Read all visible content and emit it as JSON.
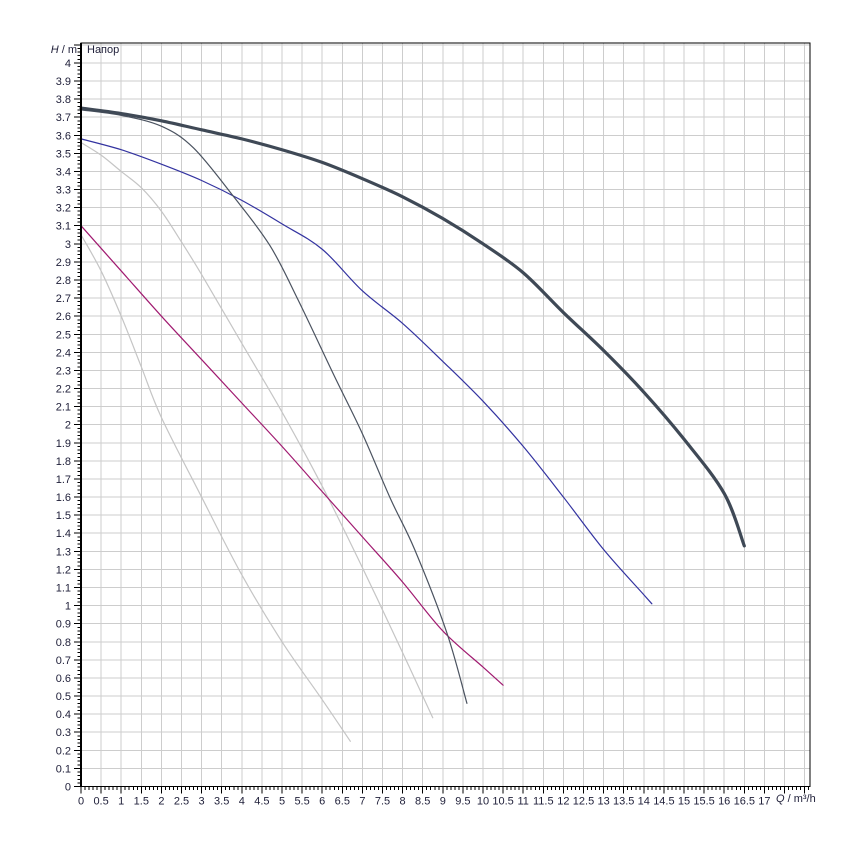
{
  "chart": {
    "title": "Напор",
    "y_axis": {
      "symbol": "H",
      "unit_suffix": " / m"
    },
    "x_axis": {
      "symbol": "Q",
      "unit_suffix": " / m³/h"
    }
  },
  "colors": {
    "grid": "#cdcdcd",
    "border": "#000000",
    "tick": "#000000",
    "label_text": "#1e1e38",
    "curve_main": "#3f4956",
    "curve_dark_thin": "#4b5360",
    "curve_blue": "#3333a0",
    "curve_magenta": "#a01a70",
    "curve_gray": "#c5c5c5"
  },
  "chart_data": {
    "type": "line",
    "title": "Напор",
    "xlabel": "Q / m³/h",
    "ylabel": "H / m",
    "xlim": [
      0,
      18.13
    ],
    "ylim": [
      0,
      4.11
    ],
    "grid": true,
    "x_major_step": 0.5,
    "x_minor_step": 0.1,
    "y_major_step": 0.1,
    "y_minor_step": 0.02,
    "x_tick_labels": [
      "0",
      "0.5",
      "1",
      "1.5",
      "2",
      "2.5",
      "3",
      "3.5",
      "4",
      "4.5",
      "5",
      "5.5",
      "6",
      "6.5",
      "7",
      "7.5",
      "8",
      "8.5",
      "9",
      "9.5",
      "10",
      "10.5",
      "11",
      "11.5",
      "12",
      "12.5",
      "13",
      "13.5",
      "14",
      "14.5",
      "15",
      "15.5",
      "16",
      "16.5",
      "17"
    ],
    "y_tick_labels": [
      "0",
      "0.1",
      "0.2",
      "0.3",
      "0.4",
      "0.5",
      "0.6",
      "0.7",
      "0.8",
      "0.9",
      "1",
      "1.1",
      "1.2",
      "1.3",
      "1.4",
      "1.5",
      "1.6",
      "1.7",
      "1.8",
      "1.9",
      "2",
      "2.1",
      "2.2",
      "2.3",
      "2.4",
      "2.5",
      "2.6",
      "2.7",
      "2.8",
      "2.9",
      "3",
      "3.1",
      "3.2",
      "3.3",
      "3.4",
      "3.5",
      "3.6",
      "3.7",
      "3.8",
      "3.9",
      "4"
    ],
    "series": [
      {
        "name": "curve-gray-lower",
        "color_key": "curve_gray",
        "width": 1.2,
        "points": [
          [
            0,
            3.05
          ],
          [
            0.5,
            2.85
          ],
          [
            1,
            2.6
          ],
          [
            1.5,
            2.32
          ],
          [
            2,
            2.04
          ],
          [
            3,
            1.6
          ],
          [
            4,
            1.17
          ],
          [
            5,
            0.8
          ],
          [
            6,
            0.48
          ],
          [
            6.7,
            0.25
          ]
        ]
      },
      {
        "name": "curve-gray-upper",
        "color_key": "curve_gray",
        "width": 1.2,
        "points": [
          [
            0,
            3.56
          ],
          [
            0.5,
            3.49
          ],
          [
            1,
            3.4
          ],
          [
            1.5,
            3.31
          ],
          [
            2,
            3.18
          ],
          [
            2.5,
            3.01
          ],
          [
            3,
            2.83
          ],
          [
            4,
            2.45
          ],
          [
            5,
            2.07
          ],
          [
            6,
            1.66
          ],
          [
            7,
            1.21
          ],
          [
            8,
            0.74
          ],
          [
            8.75,
            0.38
          ]
        ]
      },
      {
        "name": "curve-magenta",
        "color_key": "curve_magenta",
        "width": 1.2,
        "points": [
          [
            0,
            3.1
          ],
          [
            1,
            2.85
          ],
          [
            2,
            2.6
          ],
          [
            3,
            2.36
          ],
          [
            4,
            2.12
          ],
          [
            5,
            1.88
          ],
          [
            6,
            1.63
          ],
          [
            7,
            1.38
          ],
          [
            8,
            1.13
          ],
          [
            9,
            0.86
          ],
          [
            10,
            0.66
          ],
          [
            10.5,
            0.56
          ]
        ]
      },
      {
        "name": "curve-blue",
        "color_key": "curve_blue",
        "width": 1.2,
        "points": [
          [
            0,
            3.58
          ],
          [
            1,
            3.52
          ],
          [
            2,
            3.44
          ],
          [
            3,
            3.35
          ],
          [
            4,
            3.24
          ],
          [
            5,
            3.11
          ],
          [
            6,
            2.97
          ],
          [
            7,
            2.74
          ],
          [
            8,
            2.56
          ],
          [
            9,
            2.35
          ],
          [
            10,
            2.13
          ],
          [
            11,
            1.88
          ],
          [
            12,
            1.6
          ],
          [
            13,
            1.31
          ],
          [
            14,
            1.06
          ],
          [
            14.2,
            1.01
          ]
        ]
      },
      {
        "name": "curve-dark-thin",
        "color_key": "curve_dark_thin",
        "width": 1.2,
        "points": [
          [
            0,
            3.74
          ],
          [
            1,
            3.71
          ],
          [
            2,
            3.65
          ],
          [
            2.8,
            3.53
          ],
          [
            3.8,
            3.26
          ],
          [
            4.7,
            2.99
          ],
          [
            5.4,
            2.69
          ],
          [
            6.3,
            2.27
          ],
          [
            7,
            1.95
          ],
          [
            7.7,
            1.59
          ],
          [
            8.3,
            1.31
          ],
          [
            9.1,
            0.85
          ],
          [
            9.6,
            0.46
          ]
        ]
      },
      {
        "name": "curve-max-speed-main",
        "color_key": "curve_main",
        "width": 3.2,
        "points": [
          [
            0,
            3.75
          ],
          [
            1,
            3.72
          ],
          [
            2,
            3.68
          ],
          [
            3,
            3.63
          ],
          [
            4,
            3.58
          ],
          [
            5,
            3.52
          ],
          [
            6,
            3.45
          ],
          [
            7,
            3.36
          ],
          [
            8,
            3.26
          ],
          [
            9,
            3.14
          ],
          [
            10,
            3.0
          ],
          [
            11,
            2.84
          ],
          [
            12,
            2.62
          ],
          [
            13,
            2.41
          ],
          [
            14,
            2.18
          ],
          [
            15,
            1.92
          ],
          [
            16,
            1.62
          ],
          [
            16.5,
            1.33
          ]
        ]
      }
    ]
  }
}
